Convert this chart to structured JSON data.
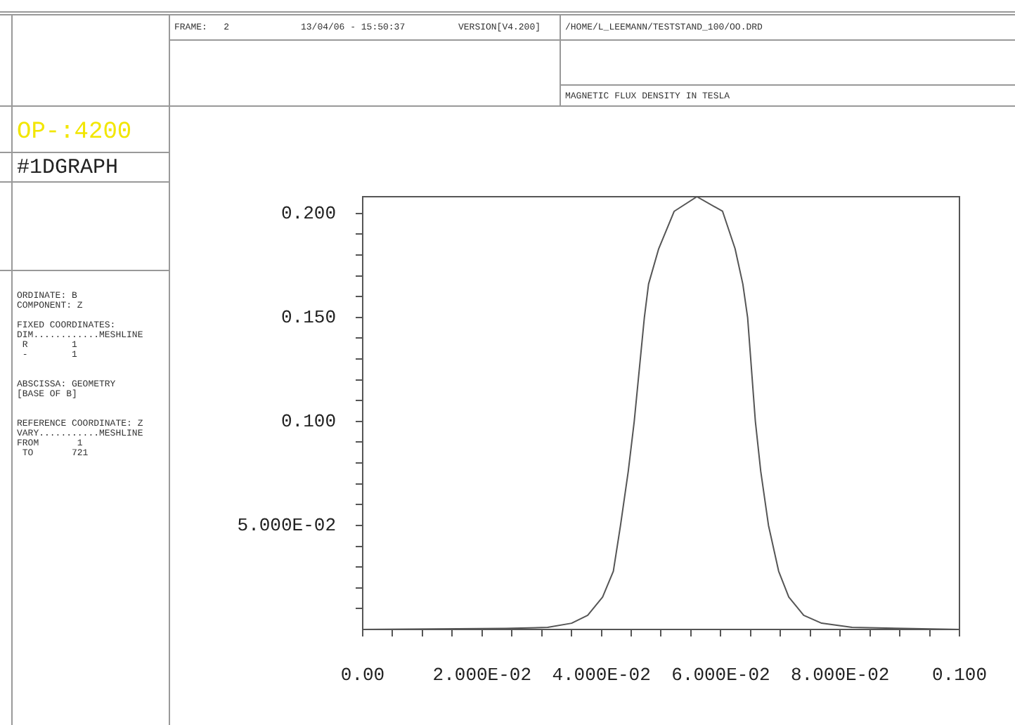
{
  "chart_data": {
    "type": "line",
    "title": "MAGNETIC FLUX DENSITY IN TESLA",
    "annotations": [
      "FRAME:   2",
      "13/04/06 - 15:50:37",
      "VERSION[V4.200]",
      "/HOME/L_LEEMANN/TESTSTAND_100/OO.DRD",
      "OP-:4200",
      "#1DGRAPH",
      "ORDINATE: B\nCOMPONENT: Z\n\nFIXED COORDINATES:\nDIM............MESHLINE\n R        1\n -        1\n\n\nABSCISSA: GEOMETRY\n[BASE OF B]\n\n\nREFERENCE COORDINATE: Z\nVARY...........MESHLINE\nFROM       1\n TO       721"
    ],
    "x": [
      0,
      0.024,
      0.031,
      0.035,
      0.0377,
      0.0402,
      0.042,
      0.0432,
      0.0445,
      0.0455,
      0.0472,
      0.0479,
      0.0496,
      0.0522,
      0.056,
      0.0603,
      0.0624,
      0.0637,
      0.0645,
      0.0658,
      0.0667,
      0.068,
      0.0697,
      0.0714,
      0.0739,
      0.0769,
      0.082,
      0.0905,
      0.1
    ],
    "series": [
      {
        "color": "#555555",
        "values": [
          0,
          0.0005,
          0.001,
          0.003,
          0.0068,
          0.0156,
          0.028,
          0.05,
          0.076,
          0.1,
          0.15,
          0.166,
          0.183,
          0.201,
          0.208,
          0.201,
          0.183,
          0.166,
          0.15,
          0.1,
          0.076,
          0.05,
          0.028,
          0.0156,
          0.0068,
          0.003,
          0.001,
          0.0005,
          0
        ]
      }
    ],
    "xlim": [
      0,
      0.1
    ],
    "xticks": [
      {
        "value": 0,
        "label": "0.00"
      },
      {
        "value": 0.005,
        "label": null
      },
      {
        "value": 0.01,
        "label": null
      },
      {
        "value": 0.015,
        "label": null
      },
      {
        "value": 0.02,
        "label": "2.000E-02"
      },
      {
        "value": 0.025,
        "label": null
      },
      {
        "value": 0.03,
        "label": null
      },
      {
        "value": 0.035,
        "label": null
      },
      {
        "value": 0.04,
        "label": "4.000E-02"
      },
      {
        "value": 0.045,
        "label": null
      },
      {
        "value": 0.05,
        "label": null
      },
      {
        "value": 0.055,
        "label": null
      },
      {
        "value": 0.06,
        "label": "6.000E-02"
      },
      {
        "value": 0.065,
        "label": null
      },
      {
        "value": 0.07,
        "label": null
      },
      {
        "value": 0.075,
        "label": null
      },
      {
        "value": 0.08,
        "label": "8.000E-02"
      },
      {
        "value": 0.085,
        "label": null
      },
      {
        "value": 0.09,
        "label": null
      },
      {
        "value": 0.095,
        "label": null
      },
      {
        "value": 0.1,
        "label": "0.100"
      }
    ],
    "ylim": [
      0,
      0.208
    ],
    "yticks": [
      {
        "value": 0.01,
        "label": null
      },
      {
        "value": 0.02,
        "label": null
      },
      {
        "value": 0.03,
        "label": null
      },
      {
        "value": 0.04,
        "label": null
      },
      {
        "value": 0.05,
        "label": "5.000E-02"
      },
      {
        "value": 0.06,
        "label": null
      },
      {
        "value": 0.07,
        "label": null
      },
      {
        "value": 0.08,
        "label": null
      },
      {
        "value": 0.09,
        "label": null
      },
      {
        "value": 0.1,
        "label": "0.100"
      },
      {
        "value": 0.11,
        "label": null
      },
      {
        "value": 0.12,
        "label": null
      },
      {
        "value": 0.13,
        "label": null
      },
      {
        "value": 0.14,
        "label": null
      },
      {
        "value": 0.15,
        "label": "0.150"
      },
      {
        "value": 0.16,
        "label": null
      },
      {
        "value": 0.17,
        "label": null
      },
      {
        "value": 0.18,
        "label": null
      },
      {
        "value": 0.19,
        "label": null
      },
      {
        "value": 0.2,
        "label": "0.200"
      }
    ],
    "grid": false,
    "legend": false,
    "marker": "none",
    "line_style": "solid"
  }
}
